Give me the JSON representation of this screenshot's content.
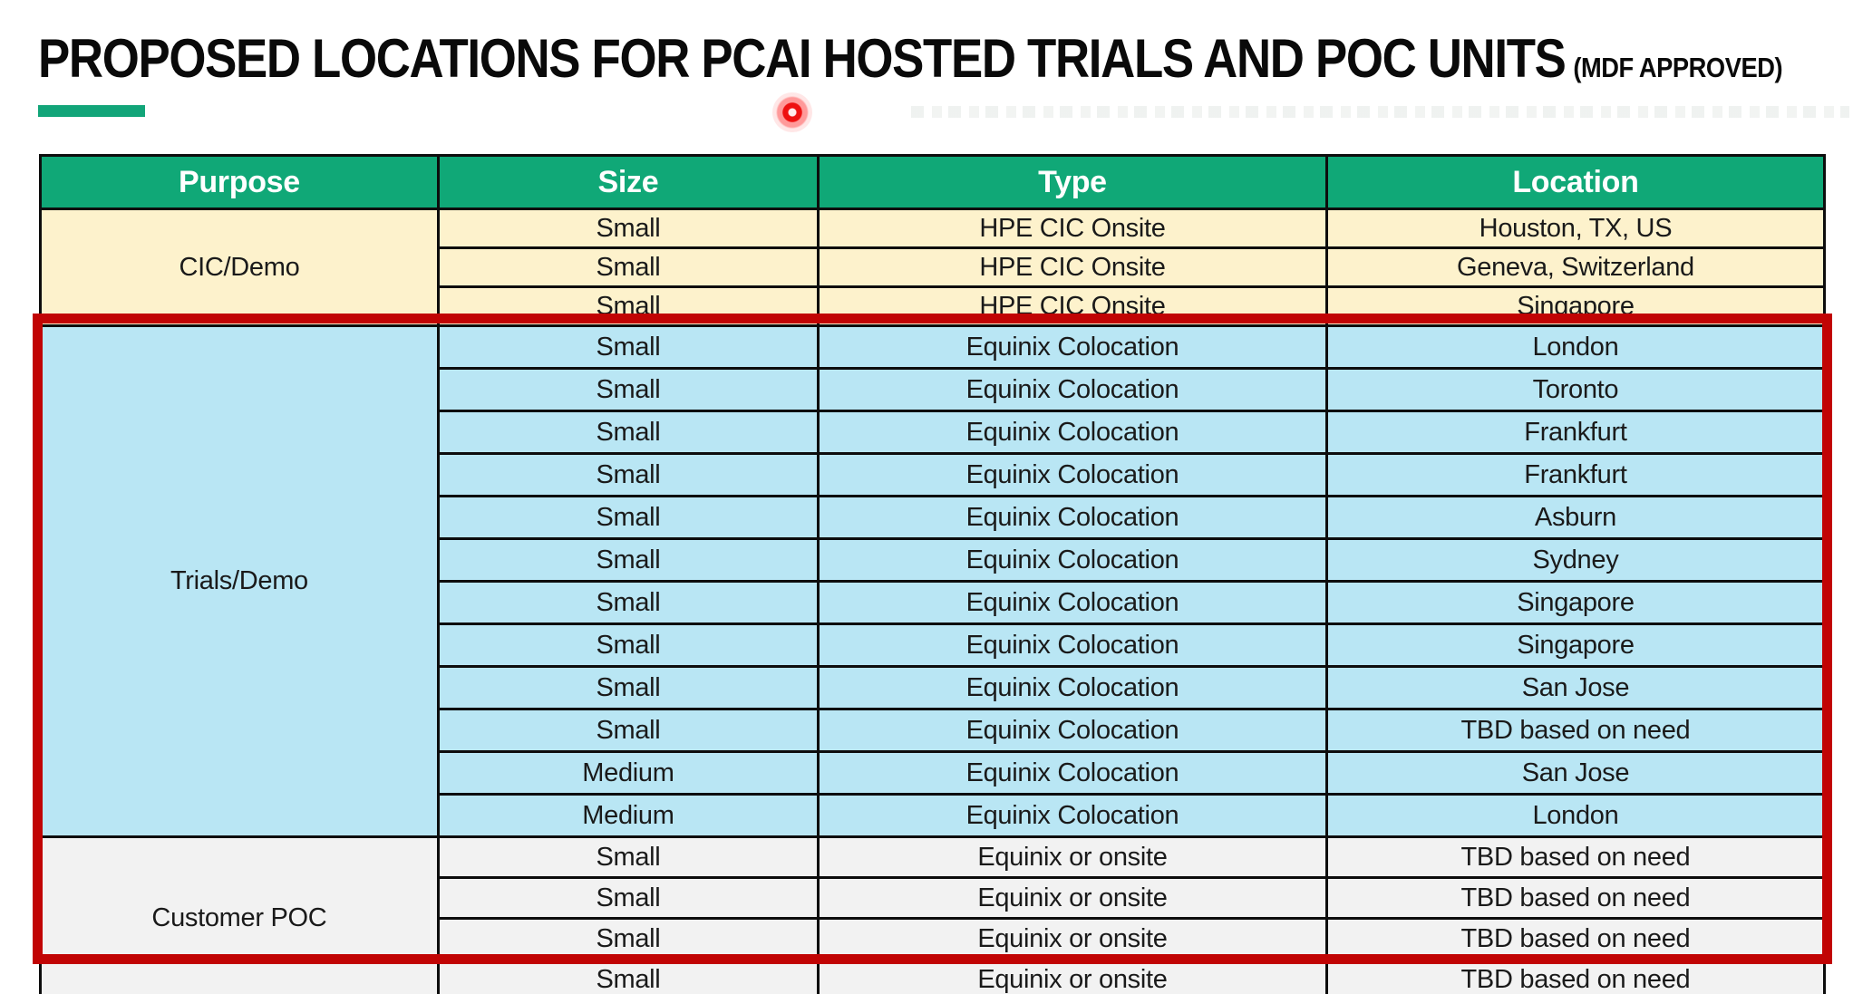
{
  "title": {
    "main": "PROPOSED LOCATIONS FOR PCAI HOSTED TRIALS AND POC UNITS",
    "suffix": "(MDF APPROVED)"
  },
  "colors": {
    "header_bg": "#10A877",
    "header_text": "#FFFFFF",
    "cic_bg": "#FDF2CC",
    "trials_bg": "#B9E6F4",
    "poc_bg": "#F2F2F2",
    "grid": "#0D0D0D",
    "text": "#1A1A1A",
    "green_accent": "#12A579",
    "highlight_red": "#C10404"
  },
  "annotations": {
    "laser_dot": "red-laser-pointer-dot",
    "highlight_box": "red-highlight-rectangle-around-trials-and-poc-sections"
  },
  "table": {
    "columns": [
      "Purpose",
      "Size",
      "Type",
      "Location"
    ],
    "sections": [
      {
        "purpose": "CIC/Demo",
        "rows": [
          {
            "size": "Small",
            "type": "HPE CIC Onsite",
            "location": "Houston, TX, US"
          },
          {
            "size": "Small",
            "type": "HPE CIC Onsite",
            "location": "Geneva, Switzerland"
          },
          {
            "size": "Small",
            "type": "HPE CIC Onsite",
            "location": "Singapore"
          }
        ]
      },
      {
        "purpose": "Trials/Demo",
        "rows": [
          {
            "size": "Small",
            "type": "Equinix Colocation",
            "location": "London"
          },
          {
            "size": "Small",
            "type": "Equinix Colocation",
            "location": "Toronto"
          },
          {
            "size": "Small",
            "type": "Equinix Colocation",
            "location": "Frankfurt"
          },
          {
            "size": "Small",
            "type": "Equinix Colocation",
            "location": "Frankfurt"
          },
          {
            "size": "Small",
            "type": "Equinix Colocation",
            "location": "Asburn"
          },
          {
            "size": "Small",
            "type": "Equinix Colocation",
            "location": "Sydney"
          },
          {
            "size": "Small",
            "type": "Equinix Colocation",
            "location": "Singapore"
          },
          {
            "size": "Small",
            "type": "Equinix Colocation",
            "location": "Singapore"
          },
          {
            "size": "Small",
            "type": "Equinix Colocation",
            "location": "San Jose"
          },
          {
            "size": "Small",
            "type": "Equinix Colocation",
            "location": "TBD based on need"
          },
          {
            "size": "Medium",
            "type": "Equinix Colocation",
            "location": "San Jose"
          },
          {
            "size": "Medium",
            "type": "Equinix Colocation",
            "location": "London"
          }
        ]
      },
      {
        "purpose": "Customer POC",
        "rows": [
          {
            "size": "Small",
            "type": "Equinix or onsite",
            "location": "TBD based on need"
          },
          {
            "size": "Small",
            "type": "Equinix or onsite",
            "location": "TBD based on need"
          },
          {
            "size": "Small",
            "type": "Equinix or onsite",
            "location": "TBD based on need"
          },
          {
            "size": "Small",
            "type": "Equinix or onsite",
            "location": "TBD based on need"
          }
        ]
      }
    ]
  }
}
